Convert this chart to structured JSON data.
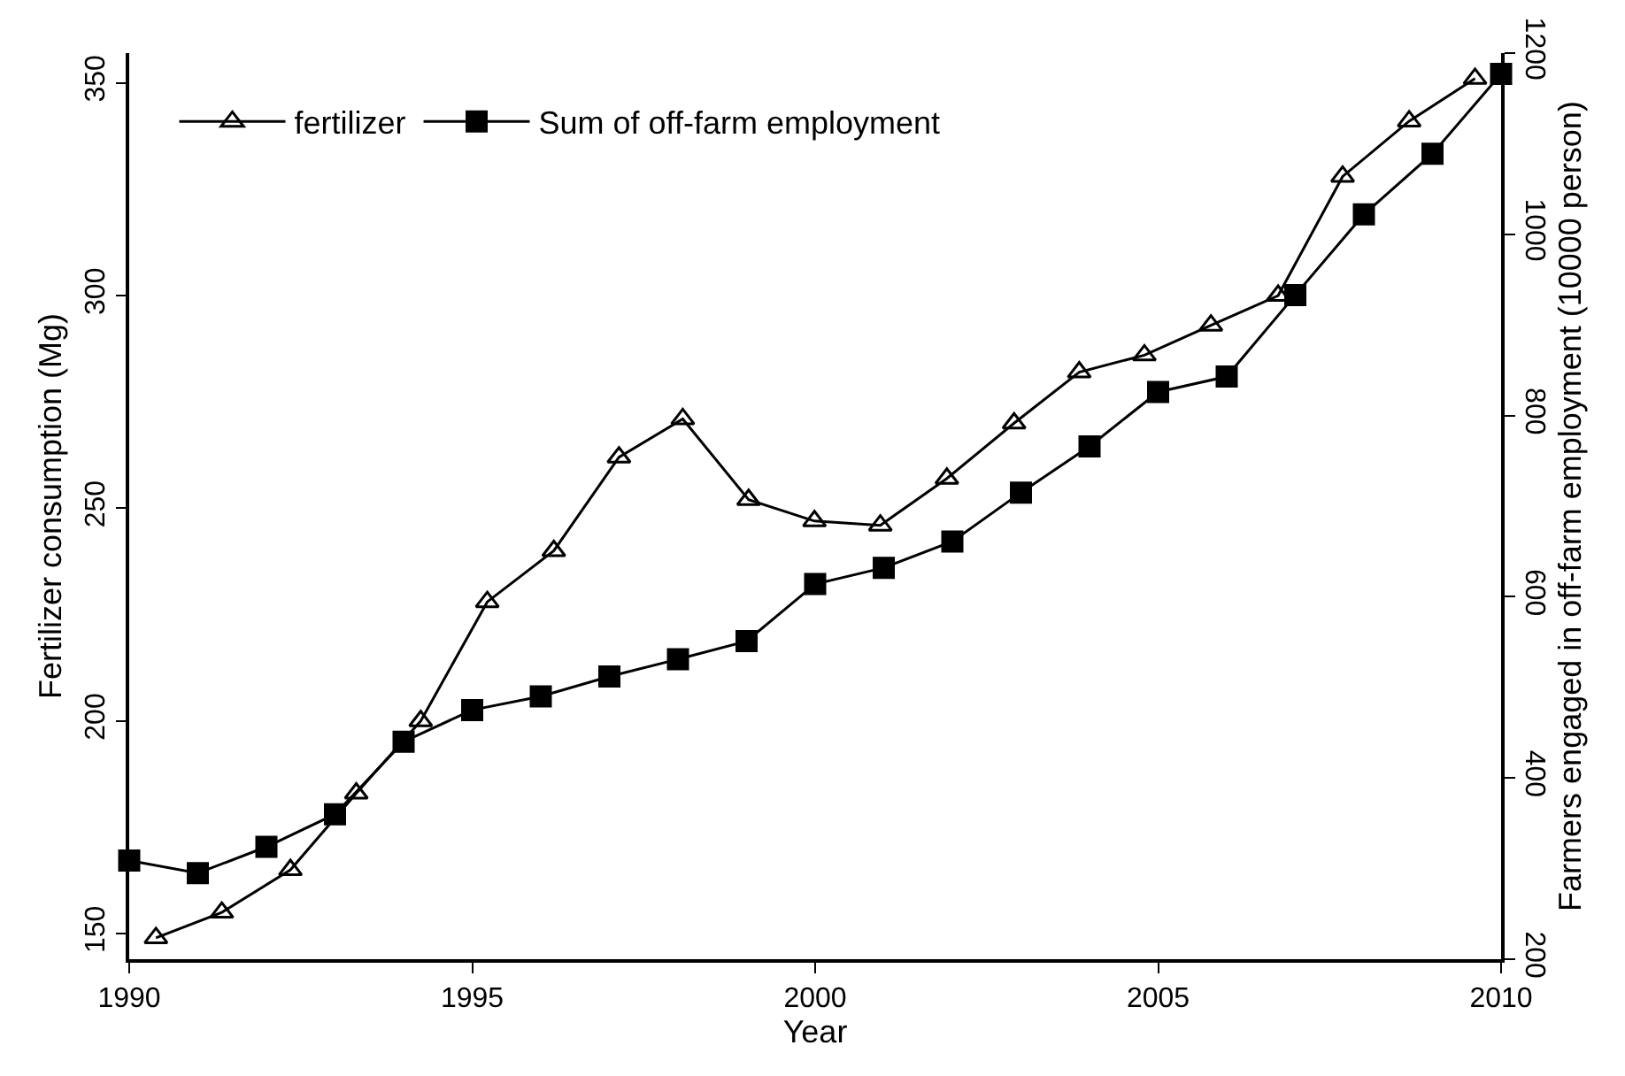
{
  "chart_data": {
    "type": "line",
    "xlabel": "Year",
    "ylabel": "Fertilizer consumption (Mg)",
    "y2label": "Farmers engaged in off-farm employment (10000 person)",
    "xlim": [
      1990,
      2010
    ],
    "xticks": [
      1990,
      1995,
      2000,
      2005,
      2010
    ],
    "ylim": [
      144,
      357
    ],
    "yticks": [
      150,
      200,
      250,
      300,
      350
    ],
    "y2lim": [
      200,
      1200
    ],
    "y2ticks": [
      200,
      400,
      600,
      800,
      1000,
      1200
    ],
    "grid": false,
    "legend": "top left",
    "line_style": "solid",
    "series": [
      {
        "name": "fertilizer",
        "color": "#000000",
        "marker": "triangle",
        "x": [
          1990.39,
          1991.35,
          1992.35,
          1993.31,
          1994.25,
          1995.22,
          1996.19,
          1997.14,
          1998.07,
          1999.03,
          1999.99,
          2000.95,
          2001.92,
          2002.9,
          2003.85,
          2004.8,
          2005.77,
          2006.75,
          2007.69,
          2008.66,
          2009.62
        ],
        "values": [
          149,
          155,
          165,
          183,
          200,
          228,
          240,
          262,
          271,
          252,
          247,
          246,
          257,
          270,
          282,
          286,
          293,
          300,
          328,
          341,
          351
        ]
      },
      {
        "name": "Sum of off-farm employment",
        "color": "#000000",
        "marker": "square",
        "axis": "y2",
        "x": [
          1990,
          1991,
          1992,
          1993,
          1994,
          1995,
          1996,
          1997,
          1998,
          1999,
          2000,
          2001,
          2002,
          2003,
          2004,
          2005,
          2006,
          2007,
          2008,
          2009,
          2010
        ],
        "values": [
          309,
          295,
          324,
          360,
          440,
          475,
          490,
          512,
          531,
          551,
          614,
          632,
          661,
          715,
          766,
          826,
          843,
          933,
          1022,
          1089,
          1177
        ]
      }
    ]
  }
}
